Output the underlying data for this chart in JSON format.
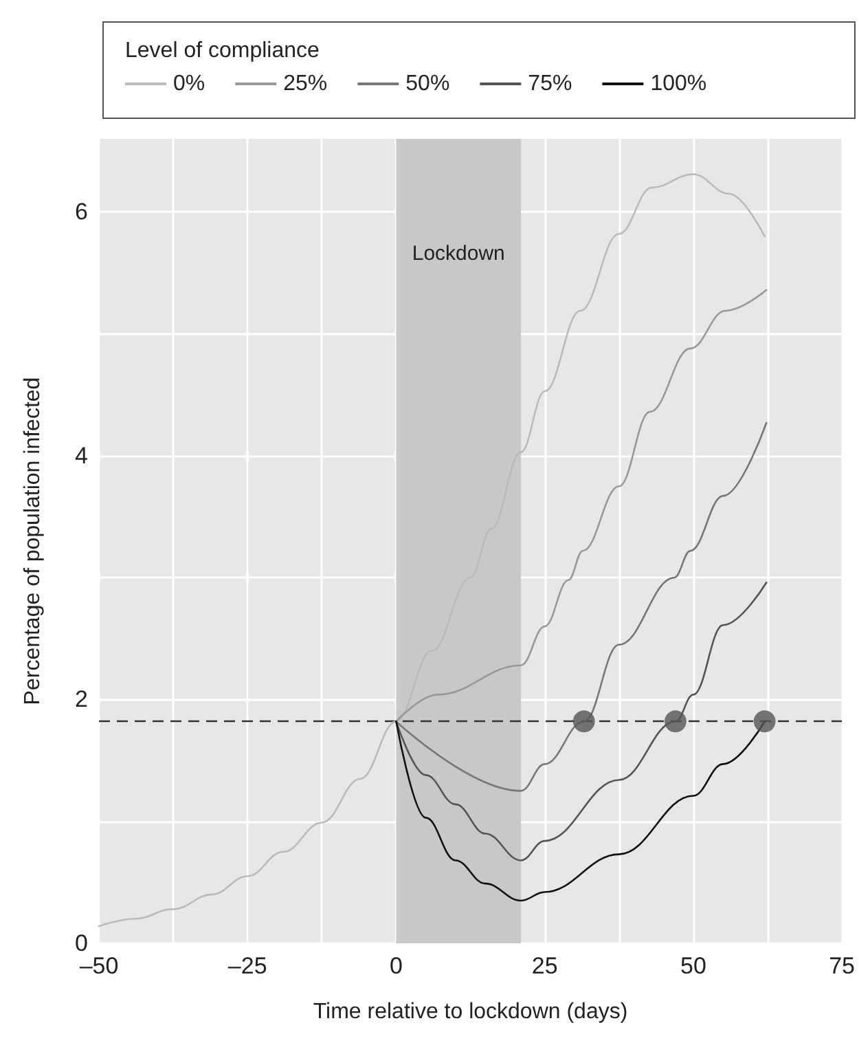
{
  "chart_data": {
    "type": "line",
    "xlabel": "Time relative to lockdown (days)",
    "ylabel": "Percentage of population infected",
    "legend_title": "Level of compliance",
    "legend": "top",
    "grid": true,
    "line_style": "solid",
    "marker": "none",
    "xlim": [
      -50,
      75
    ],
    "xticks": [
      {
        "value": -50,
        "label": "–50"
      },
      {
        "value": -25,
        "label": "–25"
      },
      0,
      25,
      50,
      75
    ],
    "ylim": [
      0,
      6.6
    ],
    "yticks": [
      0,
      2,
      4,
      6
    ],
    "series": [
      {
        "name": "0%",
        "color": "#bbbbbb",
        "x": [
          -50,
          -44,
          -37.5,
          -31,
          -25,
          -19,
          -12.5,
          -6,
          0,
          6,
          12.5,
          16,
          21,
          25,
          31,
          37.5,
          43,
          50,
          56,
          62
        ],
        "values": [
          0.14,
          0.2,
          0.28,
          0.4,
          0.55,
          0.75,
          0.99,
          1.35,
          1.82,
          2.4,
          3.0,
          3.4,
          4.03,
          4.53,
          5.19,
          5.82,
          6.2,
          6.31,
          6.15,
          5.8
        ]
      },
      {
        "name": "25%",
        "color": "#999999",
        "x": [
          0,
          7,
          21,
          25,
          29,
          31.4,
          37.5,
          42.7,
          49.5,
          55.4,
          62.3
        ],
        "values": [
          1.82,
          2.04,
          2.28,
          2.6,
          2.98,
          3.22,
          3.75,
          4.36,
          4.88,
          5.19,
          5.36
        ]
      },
      {
        "name": "50%",
        "color": "#777777",
        "x": [
          0,
          21,
          25,
          31.6,
          37.5,
          46.8,
          49.5,
          55,
          62.3
        ],
        "values": [
          1.82,
          1.25,
          1.47,
          1.82,
          2.45,
          3.0,
          3.22,
          3.67,
          4.27
        ]
      },
      {
        "name": "75%",
        "color": "#555555",
        "x": [
          0,
          5,
          10,
          15,
          21,
          25,
          37.5,
          47,
          50,
          55,
          62.3
        ],
        "values": [
          1.82,
          1.38,
          1.14,
          0.9,
          0.68,
          0.84,
          1.34,
          1.82,
          2.04,
          2.61,
          2.96
        ]
      },
      {
        "name": "100%",
        "color": "#111111",
        "x": [
          0,
          5,
          10,
          15,
          21,
          25,
          37.5,
          50,
          55,
          62
        ],
        "values": [
          1.82,
          1.03,
          0.68,
          0.49,
          0.35,
          0.42,
          0.73,
          1.21,
          1.47,
          1.82
        ]
      },
      {
        "type": "scatter",
        "marker": "circle",
        "color": "#555555",
        "x": [
          31.6,
          47,
          62
        ],
        "values": [
          1.82,
          1.82,
          1.82
        ]
      }
    ],
    "ref_lines": [
      {
        "axis": "y",
        "value": 1.82,
        "color": "#333333",
        "line_style": "dashed"
      }
    ],
    "bands": [
      {
        "axis": "x",
        "from": 0,
        "to": 21,
        "label": "Lockdown",
        "color": "#c8c8ca"
      }
    ]
  }
}
